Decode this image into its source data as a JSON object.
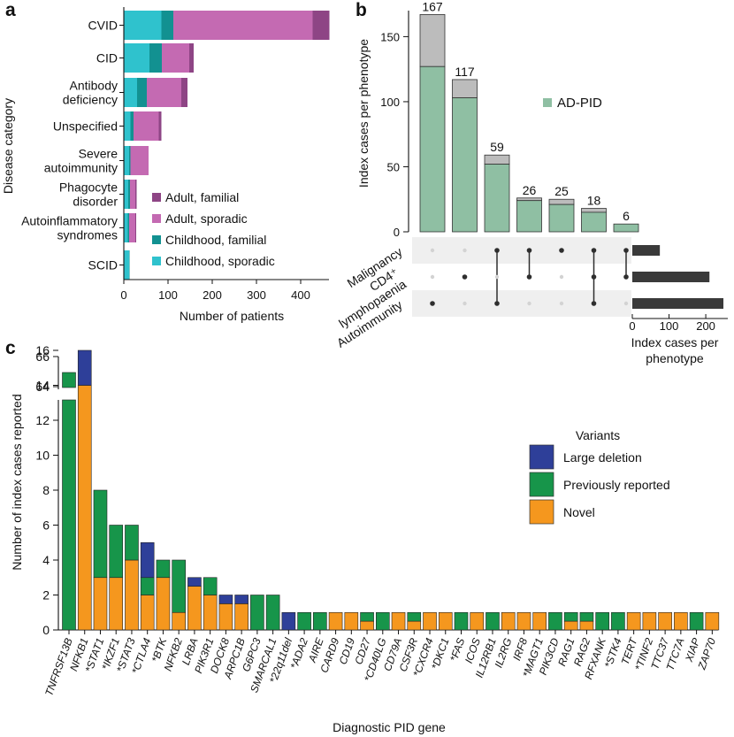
{
  "colors": {
    "adult_familial": "#8e4585",
    "adult_sporadic": "#c46ab2",
    "child_familial": "#129191",
    "child_sporadic": "#2fc2cd",
    "ad_pid": "#8fbfa3",
    "other_gray": "#bcbcbc",
    "bar_dark": "#3a3a3a",
    "large_deletion": "#2e3f99",
    "previously_reported": "#17954a",
    "novel": "#f5971e",
    "row_band": "#efefef",
    "dot_active": "#2e2e2e",
    "dot_inactive": "#d3d3d3"
  },
  "panel_a": {
    "letter": "a",
    "chart_data": {
      "type": "bar",
      "orientation": "horizontal",
      "stacked": true,
      "ylabel": "Disease category",
      "xlabel": "Number of patients",
      "xlim": [
        0,
        460
      ],
      "xticks": [
        "0",
        "100",
        "200",
        "300",
        "400"
      ],
      "categories": [
        "CVID",
        "CID",
        "Antibody deficiency",
        "Unspecified",
        "Severe autoimmunity",
        "Phagocyte disorder",
        "Autoinflammatory syndromes",
        "SCID"
      ],
      "category_lines": [
        [
          "CVID"
        ],
        [
          "CID"
        ],
        [
          "Antibody",
          "deficiency"
        ],
        [
          "Unspecified"
        ],
        [
          "Severe",
          "autoimmunity"
        ],
        [
          "Phagocyte",
          "disorder"
        ],
        [
          "Autoinflammatory",
          "syndromes"
        ],
        [
          "SCID"
        ]
      ],
      "series": [
        {
          "name": "Childhood, sporadic",
          "values": [
            85,
            58,
            30,
            15,
            12,
            10,
            9,
            12
          ]
        },
        {
          "name": "Childhood, familial",
          "values": [
            27,
            28,
            22,
            7,
            3,
            4,
            3,
            1
          ]
        },
        {
          "name": "Adult, sporadic",
          "values": [
            315,
            62,
            78,
            57,
            41,
            12,
            14,
            0
          ]
        },
        {
          "name": "Adult, familial",
          "values": [
            38,
            10,
            14,
            6,
            0,
            3,
            2,
            0
          ]
        }
      ],
      "legend": [
        "Adult, familial",
        "Adult, sporadic",
        "Childhood, familial",
        "Childhood, sporadic"
      ],
      "legend_position": "bottom-right"
    }
  },
  "panel_b": {
    "letter": "b",
    "chart_data": {
      "type": "bar",
      "ylabel": "Index cases per phenotype",
      "ylim": [
        0,
        170
      ],
      "yticks": [
        "0",
        "50",
        "100",
        "150"
      ],
      "totals": [
        167,
        117,
        59,
        26,
        25,
        18,
        6
      ],
      "ad_pid": [
        127,
        103,
        52,
        24,
        21,
        15,
        6
      ],
      "legend": [
        "AD-PID"
      ],
      "legend_position": "right",
      "sets": [
        "Malignancy",
        "CD4⁺ lymphopaenia",
        "Autoimmunity"
      ],
      "set_lines": [
        [
          "Malignancy"
        ],
        [
          "CD4⁺",
          "lymphopaenia"
        ],
        [
          "Autoimmunity"
        ]
      ],
      "membership": [
        [
          2
        ],
        [
          1
        ],
        [
          0,
          2
        ],
        [
          0,
          1
        ],
        [
          0
        ],
        [
          0,
          1,
          2
        ],
        [
          0,
          1
        ]
      ],
      "set_sizes": [
        75,
        210,
        248
      ],
      "set_size_xlim": [
        0,
        260
      ],
      "set_size_xticks": [
        "0",
        "100",
        "200"
      ],
      "set_size_xlabel_lines": [
        "Index cases per",
        "phenotype"
      ]
    }
  },
  "panel_c": {
    "letter": "c",
    "chart_data": {
      "type": "bar",
      "stacked": true,
      "xlabel": "Diagnostic PID gene",
      "ylabel": "Number of index cases reported",
      "ylim_lower": [
        0,
        17
      ],
      "yticks_lower": [
        "0",
        "2",
        "4",
        "6",
        "8",
        "10",
        "12",
        "14",
        "16"
      ],
      "yticks_upper": [
        "64",
        "66"
      ],
      "broken_axis": true,
      "legend_title": "Variants",
      "legend": [
        "Large deletion",
        "Previously reported",
        "Novel"
      ],
      "legend_position": "right",
      "categories": [
        "TNFRSF13B",
        "NFKB1",
        "*STAT1",
        "*IKZF1",
        "*STAT3",
        "*CTLA4",
        "*BTK",
        "NFKB2",
        "LRBA",
        "PIK3R1",
        "DOCK8",
        "ARPC1B",
        "G6PC3",
        "SMARCAL1",
        "*22q11del",
        "*ADA2",
        "AIRE",
        "CARD9",
        "CD19",
        "CD27",
        "*CD40LG",
        "CD79A",
        "CSF3R",
        "*CXCR4",
        "*DKC1",
        "*FAS",
        "ICOS",
        "IL12RB1",
        "IL2RG",
        "IRF8",
        "*MAGT1",
        "PIK3CD",
        "RAG1",
        "RAG2",
        "RFXANK",
        "*STK4",
        "TERT",
        "*TINF2",
        "TTC37",
        "TTC7A",
        "XIAP",
        "ZAP70"
      ],
      "series": [
        {
          "name": "Novel",
          "values": [
            0,
            14,
            3,
            3,
            4,
            2,
            3,
            1,
            2.5,
            2,
            1.5,
            1.5,
            0,
            0,
            0,
            0,
            0,
            1,
            1,
            0.5,
            0,
            1,
            0.5,
            1,
            1,
            0,
            1,
            0,
            1,
            1,
            1,
            0,
            0.5,
            0.5,
            0,
            0,
            1,
            1,
            1,
            1,
            0,
            1
          ]
        },
        {
          "name": "Previously reported",
          "values": [
            66,
            0,
            5,
            3,
            2,
            1,
            1,
            3,
            0,
            1,
            0,
            0,
            2,
            2,
            0,
            1,
            1,
            0,
            0,
            0.5,
            1,
            0,
            0.5,
            0,
            0,
            1,
            0,
            1,
            0,
            0,
            0,
            1,
            0.5,
            0.5,
            1,
            1,
            0,
            0,
            0,
            0,
            1,
            0
          ]
        },
        {
          "name": "Large deletion",
          "values": [
            0,
            2,
            0,
            0,
            0,
            2,
            0,
            0,
            0.5,
            0,
            0.5,
            0.5,
            0,
            0,
            1,
            0,
            0,
            0,
            0,
            0,
            0,
            0,
            0,
            0,
            0,
            0,
            0,
            0,
            0,
            0,
            0,
            0,
            0,
            0,
            0,
            0,
            0,
            0,
            0,
            0,
            0,
            0
          ]
        }
      ]
    }
  }
}
